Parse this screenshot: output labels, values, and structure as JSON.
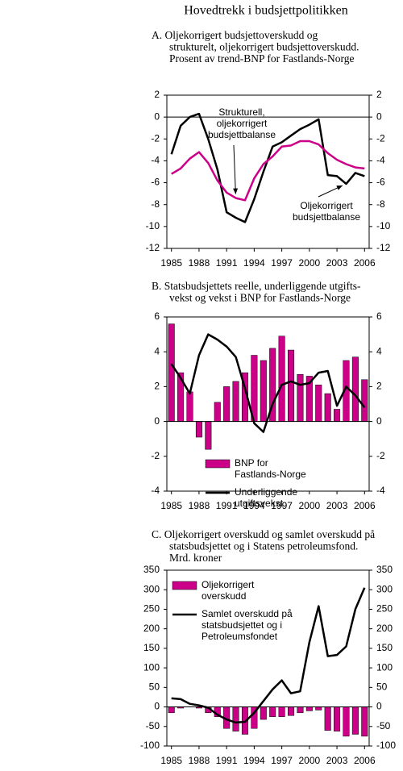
{
  "title": "Hovedtrekk i budsjettpolitikken",
  "chart_data": [
    {
      "type": "line",
      "title": [
        "A.  Oljekorrigert budsjettoverskudd og",
        "strukturelt, oljekorrigert budsjettoverskudd.",
        "Prosent av trend-BNP for Fastlands-Norge"
      ],
      "categories": [
        1985,
        null,
        null,
        1988,
        null,
        null,
        1991,
        null,
        null,
        1994,
        null,
        null,
        1997,
        null,
        null,
        2000,
        null,
        null,
        2003,
        null,
        null,
        2006
      ],
      "ylim": [
        -12,
        2
      ],
      "yticks": [
        -12,
        -10,
        -8,
        -6,
        -4,
        -2,
        0,
        2
      ],
      "y2lim": [
        -12,
        2
      ],
      "y2ticks": [
        -12,
        -10,
        -8,
        -6,
        -4,
        -2,
        0,
        2
      ],
      "series": [
        {
          "name": "Oljekorrigert budsjettbalanse",
          "type": "line",
          "color": "#000000",
          "values": [
            -3.4,
            -0.8,
            0,
            0.3,
            -2,
            -4.8,
            -8.7,
            -9.2,
            -9.6,
            -7.5,
            -5,
            -2.7,
            -2.3,
            -1.7,
            -1.1,
            -0.7,
            -0.2,
            -5.3,
            -5.4,
            -6.1,
            -5.1,
            -5.4
          ]
        },
        {
          "name": "Strukturell, oljekorrigert budsjettbalanse",
          "type": "line",
          "color": "#cc0088",
          "values": [
            -5.2,
            -4.7,
            -3.8,
            -3.2,
            -4.2,
            -5.8,
            -6.9,
            -7.4,
            -7.6,
            -5.6,
            -4.3,
            -3.6,
            -2.7,
            -2.6,
            -2.2,
            -2.2,
            -2.5,
            -3.3,
            -3.9,
            -4.3,
            -4.6,
            -4.7
          ]
        }
      ]
    },
    {
      "type": "bar",
      "title": [
        "B.  Statsbudsjettets reelle, underliggende utgifts-",
        "vekst og vekst i BNP for Fastlands-Norge"
      ],
      "categories": [
        1985,
        null,
        null,
        1988,
        null,
        null,
        1991,
        null,
        null,
        1994,
        null,
        null,
        1997,
        null,
        null,
        2000,
        null,
        null,
        2003,
        null,
        null,
        2006
      ],
      "ylim": [
        -4,
        6
      ],
      "yticks": [
        -4,
        -2,
        0,
        2,
        4,
        6
      ],
      "y2lim": [
        -4,
        6
      ],
      "y2ticks": [
        -4,
        -2,
        0,
        2,
        4,
        6
      ],
      "legend": "lower right",
      "series": [
        {
          "name": "BNP for Fastlands-Norge",
          "type": "bar",
          "color": "#cc0088",
          "values": [
            5.6,
            2.8,
            1.7,
            -0.9,
            -1.6,
            1.1,
            2.0,
            2.3,
            2.8,
            3.8,
            3.5,
            4.2,
            4.9,
            4.1,
            2.7,
            2.6,
            2.1,
            1.6,
            0.7,
            3.5,
            3.7,
            2.4
          ]
        },
        {
          "name": "Underliggende utgiftsvekst",
          "type": "line",
          "color": "#000000",
          "values": [
            3.3,
            2.5,
            1.6,
            3.8,
            5.0,
            4.7,
            4.3,
            3.7,
            1.9,
            -0.1,
            -0.6,
            1.0,
            2.1,
            2.3,
            2.1,
            2.2,
            2.8,
            2.9,
            0.9,
            2.0,
            1.5,
            0.8
          ]
        }
      ]
    },
    {
      "type": "bar",
      "title": [
        "C.  Oljekorrigert overskudd og samlet overskudd på",
        "statsbudsjettet og i  Statens petroleumsfond.",
        "Mrd. kroner"
      ],
      "categories": [
        1985,
        null,
        null,
        1988,
        null,
        null,
        1991,
        null,
        null,
        1994,
        null,
        null,
        1997,
        null,
        null,
        2000,
        null,
        null,
        2003,
        null,
        null,
        2006
      ],
      "ylim": [
        -100,
        350
      ],
      "yticks": [
        -100,
        -50,
        0,
        50,
        100,
        150,
        200,
        250,
        300,
        350
      ],
      "y2lim": [
        -100,
        350
      ],
      "y2ticks": [
        -100,
        -50,
        0,
        50,
        100,
        150,
        200,
        250,
        300,
        350
      ],
      "legend": "upper left",
      "series": [
        {
          "name": "Oljekorrigert overskudd",
          "type": "bar",
          "color": "#cc0088",
          "values": [
            -15,
            -3,
            0,
            -3,
            -15,
            -25,
            -55,
            -62,
            -70,
            -55,
            -32,
            -25,
            -25,
            -22,
            -15,
            -10,
            -8,
            -60,
            -62,
            -75,
            -70,
            -75
          ]
        },
        {
          "name": "Samlet overskudd på statsbudsjettet og i Petroleumsfondet",
          "type": "line",
          "color": "#000000",
          "values": [
            22,
            20,
            8,
            4,
            -2,
            -20,
            -32,
            -40,
            -38,
            -15,
            15,
            45,
            68,
            35,
            40,
            165,
            258,
            130,
            133,
            155,
            250,
            305
          ]
        }
      ]
    }
  ]
}
